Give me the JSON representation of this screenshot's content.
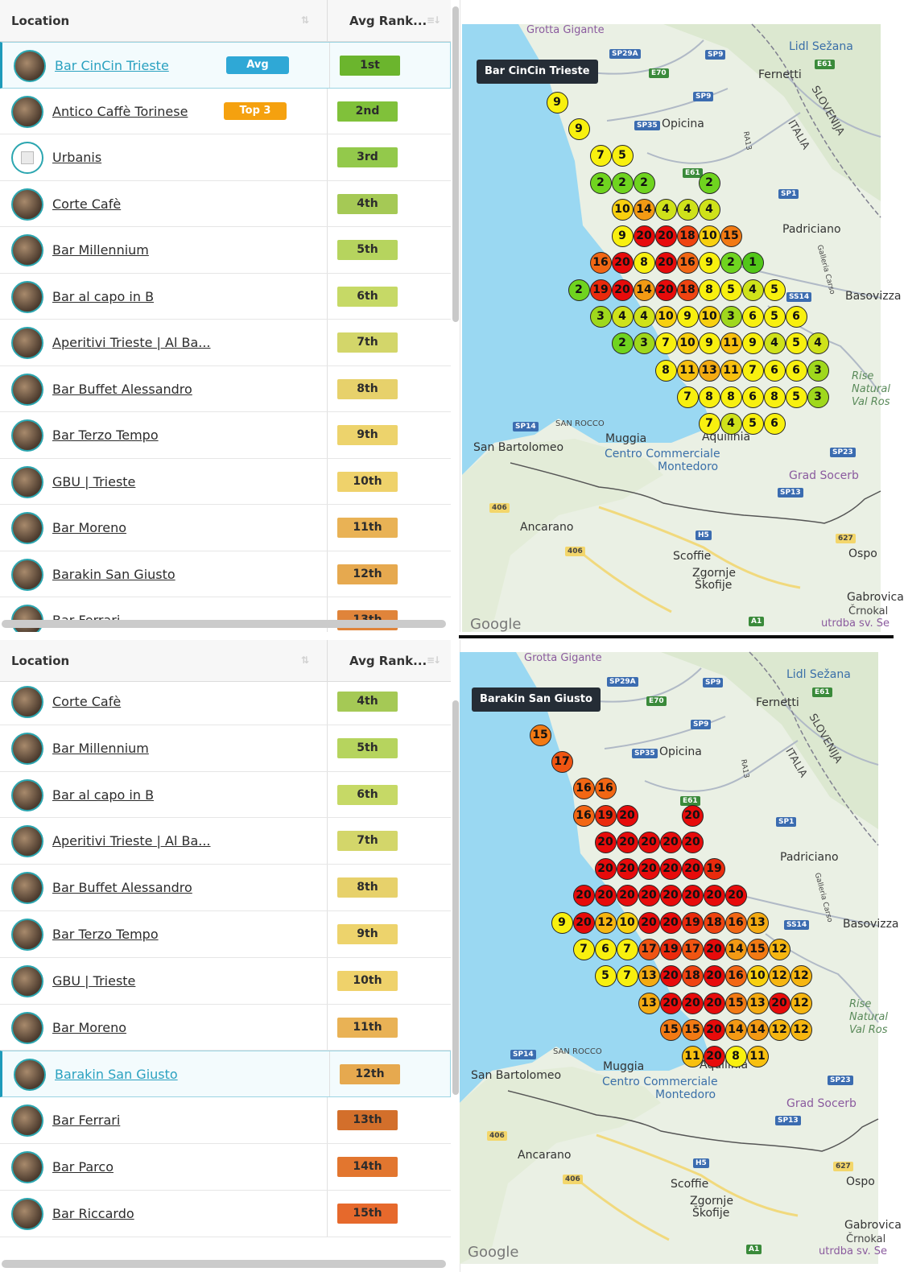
{
  "panels": [
    {
      "header": {
        "location": "Location",
        "avg_rank": "Avg Rank..."
      },
      "rows": [
        {
          "name": "Bar CinCin Trieste",
          "badge": "Avg",
          "rank": "1st",
          "selected": true,
          "rank_color": "#6bb52d"
        },
        {
          "name": "Antico Caffè Torinese",
          "badge": "Top 3",
          "rank": "2nd",
          "rank_color": "#80c13a"
        },
        {
          "name": "Urbanis",
          "rank": "3rd",
          "rank_color": "#93c94b",
          "blank": true
        },
        {
          "name": "Corte Cafè",
          "rank": "4th",
          "rank_color": "#a5c955"
        },
        {
          "name": "Bar Millennium",
          "rank": "5th",
          "rank_color": "#b6d45e"
        },
        {
          "name": "Bar al capo in B",
          "rank": "6th",
          "rank_color": "#c6d966"
        },
        {
          "name": "Aperitivi Trieste | Al Ba...",
          "rank": "7th",
          "rank_color": "#d3d66a"
        },
        {
          "name": "Bar Buffet Alessandro",
          "rank": "8th",
          "rank_color": "#e7d16b"
        },
        {
          "name": "Bar Terzo Tempo",
          "rank": "9th",
          "rank_color": "#edd36c"
        },
        {
          "name": "GBU | Trieste",
          "rank": "10th",
          "rank_color": "#efd26b"
        },
        {
          "name": "Bar Moreno",
          "rank": "11th",
          "rank_color": "#e9b255"
        },
        {
          "name": "Barakin San Giusto",
          "rank": "12th",
          "rank_color": "#e6a94f"
        },
        {
          "name": "Bar Ferrari",
          "rank": "13th",
          "rank_color": "#e0843a"
        }
      ],
      "tooltip": "Bar CinCin Trieste",
      "dots": [
        {
          "v": "9",
          "c": "#f8f00f"
        },
        {
          "v": "9",
          "c": "#f8f00f"
        },
        {
          "v": "7",
          "c": "#f8f00f"
        },
        {
          "v": "5",
          "c": "#f8f00f"
        },
        {
          "v": "2",
          "c": "#6fd41f"
        },
        {
          "v": "2",
          "c": "#6fd41f"
        },
        {
          "v": "2",
          "c": "#6fd41f"
        },
        {
          "v": "2",
          "c": "#6fd41f"
        },
        {
          "v": "10",
          "c": "#f8d00f"
        },
        {
          "v": "14",
          "c": "#f39a14"
        },
        {
          "v": "4",
          "c": "#cfe21a"
        },
        {
          "v": "4",
          "c": "#cfe21a"
        },
        {
          "v": "4",
          "c": "#cfe21a"
        },
        {
          "v": "9",
          "c": "#f8f00f"
        },
        {
          "v": "20",
          "c": "#e70b0b"
        },
        {
          "v": "20",
          "c": "#e70b0b"
        },
        {
          "v": "18",
          "c": "#ef4411"
        },
        {
          "v": "10",
          "c": "#f8d00f"
        },
        {
          "v": "15",
          "c": "#f27a14"
        },
        {
          "v": "16",
          "c": "#f26714"
        },
        {
          "v": "20",
          "c": "#e70b0b"
        },
        {
          "v": "8",
          "c": "#f8f00f"
        },
        {
          "v": "20",
          "c": "#e70b0b"
        },
        {
          "v": "16",
          "c": "#f26714"
        },
        {
          "v": "9",
          "c": "#f8f00f"
        },
        {
          "v": "2",
          "c": "#6fd41f"
        },
        {
          "v": "1",
          "c": "#52c719"
        },
        {
          "v": "2",
          "c": "#6fd41f"
        },
        {
          "v": "19",
          "c": "#ea2b0d"
        },
        {
          "v": "20",
          "c": "#e70b0b"
        },
        {
          "v": "14",
          "c": "#f39a14"
        },
        {
          "v": "20",
          "c": "#e70b0b"
        },
        {
          "v": "18",
          "c": "#ef4411"
        },
        {
          "v": "8",
          "c": "#f8f00f"
        },
        {
          "v": "5",
          "c": "#f8f00f"
        },
        {
          "v": "4",
          "c": "#cfe21a"
        },
        {
          "v": "5",
          "c": "#f8f00f"
        },
        {
          "v": "3",
          "c": "#9fd81c"
        },
        {
          "v": "4",
          "c": "#cfe21a"
        },
        {
          "v": "4",
          "c": "#cfe21a"
        },
        {
          "v": "10",
          "c": "#f8d00f"
        },
        {
          "v": "9",
          "c": "#f8f00f"
        },
        {
          "v": "10",
          "c": "#f8d00f"
        },
        {
          "v": "3",
          "c": "#9fd81c"
        },
        {
          "v": "6",
          "c": "#f8f00f"
        },
        {
          "v": "5",
          "c": "#f8f00f"
        },
        {
          "v": "6",
          "c": "#f8f00f"
        },
        {
          "v": "2",
          "c": "#6fd41f"
        },
        {
          "v": "3",
          "c": "#9fd81c"
        },
        {
          "v": "7",
          "c": "#f8f00f"
        },
        {
          "v": "10",
          "c": "#f8d00f"
        },
        {
          "v": "9",
          "c": "#f8f00f"
        },
        {
          "v": "11",
          "c": "#f8c00f"
        },
        {
          "v": "9",
          "c": "#f8f00f"
        },
        {
          "v": "4",
          "c": "#cfe21a"
        },
        {
          "v": "5",
          "c": "#f8f00f"
        },
        {
          "v": "4",
          "c": "#cfe21a"
        },
        {
          "v": "8",
          "c": "#f8f00f"
        },
        {
          "v": "11",
          "c": "#f8c00f"
        },
        {
          "v": "13",
          "c": "#f4ab12"
        },
        {
          "v": "11",
          "c": "#f8c00f"
        },
        {
          "v": "7",
          "c": "#f8f00f"
        },
        {
          "v": "6",
          "c": "#f8f00f"
        },
        {
          "v": "6",
          "c": "#f8f00f"
        },
        {
          "v": "3",
          "c": "#9fd81c"
        },
        {
          "v": "7",
          "c": "#f8f00f"
        },
        {
          "v": "8",
          "c": "#f8f00f"
        },
        {
          "v": "8",
          "c": "#f8f00f"
        },
        {
          "v": "6",
          "c": "#f8f00f"
        },
        {
          "v": "8",
          "c": "#f8f00f"
        },
        {
          "v": "5",
          "c": "#f8f00f"
        },
        {
          "v": "3",
          "c": "#9fd81c"
        },
        {
          "v": "7",
          "c": "#f8f00f"
        },
        {
          "v": "4",
          "c": "#cfe21a"
        },
        {
          "v": "5",
          "c": "#f8f00f"
        },
        {
          "v": "6",
          "c": "#f8f00f"
        }
      ]
    },
    {
      "header": {
        "location": "Location",
        "avg_rank": "Avg Rank..."
      },
      "rows": [
        {
          "name": "Corte Cafè",
          "rank": "4th",
          "rank_color": "#a5c955"
        },
        {
          "name": "Bar Millennium",
          "rank": "5th",
          "rank_color": "#b6d45e"
        },
        {
          "name": "Bar al capo in B",
          "rank": "6th",
          "rank_color": "#c6d966"
        },
        {
          "name": "Aperitivi Trieste | Al Ba...",
          "rank": "7th",
          "rank_color": "#d3d66a"
        },
        {
          "name": "Bar Buffet Alessandro",
          "rank": "8th",
          "rank_color": "#e7d16b"
        },
        {
          "name": "Bar Terzo Tempo",
          "rank": "9th",
          "rank_color": "#edd36c"
        },
        {
          "name": "GBU | Trieste",
          "rank": "10th",
          "rank_color": "#efd26b"
        },
        {
          "name": "Bar Moreno",
          "rank": "11th",
          "rank_color": "#e9b255"
        },
        {
          "name": "Barakin San Giusto",
          "rank": "12th",
          "rank_color": "#e6a94f",
          "selected": true
        },
        {
          "name": "Bar Ferrari",
          "rank": "13th",
          "rank_color": "#d36f2b"
        },
        {
          "name": "Bar Parco",
          "rank": "14th",
          "rank_color": "#e2762f"
        },
        {
          "name": "Bar Riccardo",
          "rank": "15th",
          "rank_color": "#e6692c"
        }
      ],
      "tooltip": "Barakin San Giusto",
      "dots": [
        {
          "v": "15",
          "c": "#f27a14"
        },
        {
          "v": "17",
          "c": "#f05512"
        },
        {
          "v": "16",
          "c": "#f26714"
        },
        {
          "v": "16",
          "c": "#f26714"
        },
        {
          "v": "16",
          "c": "#f26714"
        },
        {
          "v": "19",
          "c": "#ea2b0d"
        },
        {
          "v": "20",
          "c": "#e70b0b"
        },
        {
          "v": "20",
          "c": "#e70b0b"
        },
        {
          "v": "20",
          "c": "#e70b0b"
        },
        {
          "v": "20",
          "c": "#e70b0b"
        },
        {
          "v": "20",
          "c": "#e70b0b"
        },
        {
          "v": "20",
          "c": "#e70b0b"
        },
        {
          "v": "20",
          "c": "#e70b0b"
        },
        {
          "v": "20",
          "c": "#e70b0b"
        },
        {
          "v": "20",
          "c": "#e70b0b"
        },
        {
          "v": "20",
          "c": "#e70b0b"
        },
        {
          "v": "20",
          "c": "#e70b0b"
        },
        {
          "v": "20",
          "c": "#e70b0b"
        },
        {
          "v": "19",
          "c": "#ea2b0d"
        },
        {
          "v": "20",
          "c": "#e70b0b"
        },
        {
          "v": "20",
          "c": "#e70b0b"
        },
        {
          "v": "20",
          "c": "#e70b0b"
        },
        {
          "v": "20",
          "c": "#e70b0b"
        },
        {
          "v": "20",
          "c": "#e70b0b"
        },
        {
          "v": "20",
          "c": "#e70b0b"
        },
        {
          "v": "20",
          "c": "#e70b0b"
        },
        {
          "v": "20",
          "c": "#e70b0b"
        },
        {
          "v": "9",
          "c": "#f8f00f"
        },
        {
          "v": "20",
          "c": "#e70b0b"
        },
        {
          "v": "12",
          "c": "#f6b611"
        },
        {
          "v": "10",
          "c": "#f8d00f"
        },
        {
          "v": "20",
          "c": "#e70b0b"
        },
        {
          "v": "20",
          "c": "#e70b0b"
        },
        {
          "v": "19",
          "c": "#ea2b0d"
        },
        {
          "v": "18",
          "c": "#ef4411"
        },
        {
          "v": "16",
          "c": "#f26714"
        },
        {
          "v": "13",
          "c": "#f4ab12"
        },
        {
          "v": "7",
          "c": "#f8f00f"
        },
        {
          "v": "6",
          "c": "#f8f00f"
        },
        {
          "v": "7",
          "c": "#f8f00f"
        },
        {
          "v": "17",
          "c": "#f05512"
        },
        {
          "v": "19",
          "c": "#ea2b0d"
        },
        {
          "v": "17",
          "c": "#f05512"
        },
        {
          "v": "20",
          "c": "#e70b0b"
        },
        {
          "v": "14",
          "c": "#f39a14"
        },
        {
          "v": "15",
          "c": "#f27a14"
        },
        {
          "v": "12",
          "c": "#f6b611"
        },
        {
          "v": "5",
          "c": "#f8f00f"
        },
        {
          "v": "7",
          "c": "#f8f00f"
        },
        {
          "v": "13",
          "c": "#f4ab12"
        },
        {
          "v": "20",
          "c": "#e70b0b"
        },
        {
          "v": "18",
          "c": "#ef4411"
        },
        {
          "v": "20",
          "c": "#e70b0b"
        },
        {
          "v": "16",
          "c": "#f26714"
        },
        {
          "v": "10",
          "c": "#f8d00f"
        },
        {
          "v": "12",
          "c": "#f6b611"
        },
        {
          "v": "12",
          "c": "#f6b611"
        },
        {
          "v": "13",
          "c": "#f4ab12"
        },
        {
          "v": "20",
          "c": "#e70b0b"
        },
        {
          "v": "20",
          "c": "#e70b0b"
        },
        {
          "v": "20",
          "c": "#e70b0b"
        },
        {
          "v": "15",
          "c": "#f27a14"
        },
        {
          "v": "13",
          "c": "#f4ab12"
        },
        {
          "v": "20",
          "c": "#e70b0b"
        },
        {
          "v": "12",
          "c": "#f6b611"
        },
        {
          "v": "15",
          "c": "#f27a14"
        },
        {
          "v": "15",
          "c": "#f27a14"
        },
        {
          "v": "20",
          "c": "#e70b0b"
        },
        {
          "v": "14",
          "c": "#f39a14"
        },
        {
          "v": "14",
          "c": "#f39a14"
        },
        {
          "v": "12",
          "c": "#f6b611"
        },
        {
          "v": "12",
          "c": "#f6b611"
        },
        {
          "v": "11",
          "c": "#f8c00f"
        },
        {
          "v": "20",
          "c": "#e70b0b"
        },
        {
          "v": "8",
          "c": "#f8f00f"
        },
        {
          "v": "11",
          "c": "#f8c00f"
        }
      ]
    }
  ],
  "badge_colors": {
    "Avg": "#2fa8d6",
    "Top 3": "#f5a10f"
  },
  "map_labels": {
    "grotta": "Grotta Gigante",
    "lidl": "Lidl Sežana",
    "fernetti": "Fernetti",
    "slovenija": "SLOVENIJA",
    "italia": "ITALIA",
    "opicina": "Opicina",
    "padriciano": "Padriciano",
    "basovizza": "Basovizza",
    "san_rocco": "SAN ROCCO",
    "san_bartolomeo": "San Bartolomeo",
    "muggia": "Muggia",
    "centro": "Centro Commerciale",
    "montedoro": "Montedoro",
    "aquilinia": "Aquilinia",
    "grad_socerb": "Grad Socerb",
    "ancarano": "Ancarano",
    "scoffie": "Scoffie",
    "zgornje": "Zgornje",
    "skofije": "Škofije",
    "ospo": "Ospo",
    "gabrovica": "Gabrovica",
    "crnokal": "Črnokal",
    "utrdba": "utrdba sv. Se",
    "rise": "Rise",
    "natural": "Natural",
    "val_ros": "Val Ros",
    "galleria": "Galleria Carso",
    "ra13": "RA13",
    "google": "Google",
    "roads": {
      "sp29a": "SP29A",
      "sp9": "SP9",
      "e70": "E70",
      "sp35": "SP35",
      "e61": "E61",
      "sp1": "SP1",
      "ss14": "SS14",
      "sp14": "SP14",
      "sp23": "SP23",
      "sp13": "SP13",
      "h5": "H5",
      "r406": "406",
      "r627": "627",
      "a1": "A1"
    }
  }
}
